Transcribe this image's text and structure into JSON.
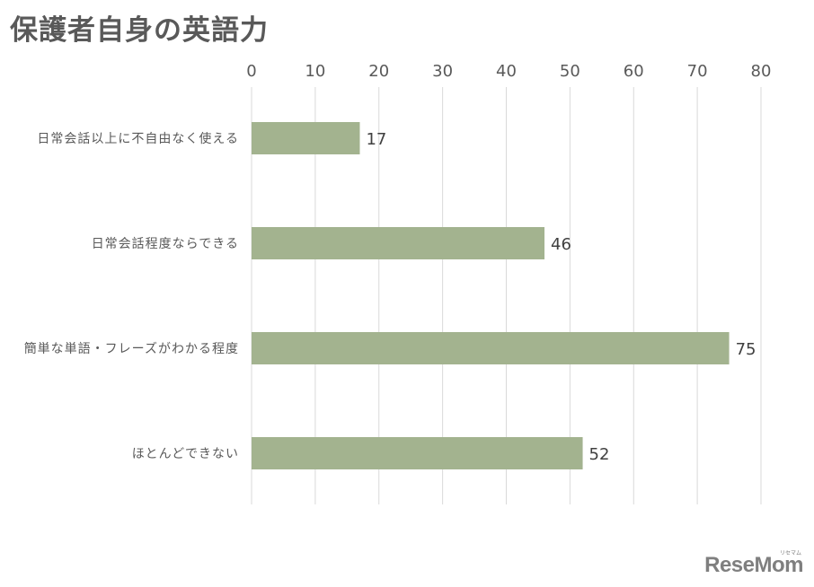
{
  "chart_data": {
    "type": "bar",
    "orientation": "horizontal",
    "title": "保護者自身の英語力",
    "categories": [
      "日常会話以上に不自由なく使える",
      "日常会話程度ならできる",
      "簡単な単語・フレーズがわかる程度",
      "ほとんどできない"
    ],
    "values": [
      17,
      46,
      75,
      52
    ],
    "xlim": [
      0,
      80
    ],
    "xticks": [
      "0",
      "10",
      "20",
      "30",
      "40",
      "50",
      "60",
      "70",
      "80"
    ],
    "axis_position": "top",
    "grid": true,
    "bar_color": "#a3b38f"
  },
  "logo": {
    "text": "ReseMom",
    "sub": "リセマム"
  }
}
